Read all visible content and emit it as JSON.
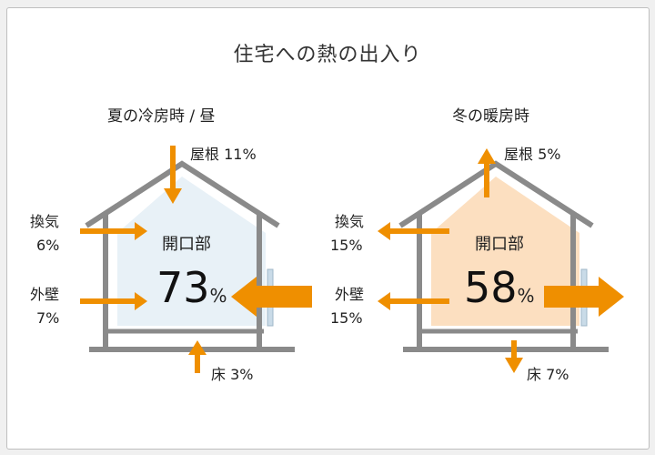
{
  "title": "住宅への熱の出入り",
  "summer": {
    "heading": "夏の冷房時 / 昼",
    "opening": {
      "label": "開口部",
      "value": "73",
      "unit": "%"
    },
    "roof": {
      "label": "屋根",
      "value": "11%"
    },
    "vent": {
      "label": "換気",
      "value": "6%"
    },
    "wall": {
      "label": "外壁",
      "value": "7%"
    },
    "floor": {
      "label": "床",
      "value": "3%"
    },
    "fill_color": "#e8f1f7",
    "direction": "inflow"
  },
  "winter": {
    "heading": "冬の暖房時",
    "opening": {
      "label": "開口部",
      "value": "58",
      "unit": "%"
    },
    "roof": {
      "label": "屋根",
      "value": "5%"
    },
    "vent": {
      "label": "換気",
      "value": "15%"
    },
    "wall": {
      "label": "外壁",
      "value": "15%"
    },
    "floor": {
      "label": "床",
      "value": "7%"
    },
    "fill_color": "#fcdfc0",
    "direction": "outflow"
  },
  "colors": {
    "arrow": "#ef8f00",
    "house_outline": "#8a8a8a",
    "window": "#c9dbe8"
  }
}
